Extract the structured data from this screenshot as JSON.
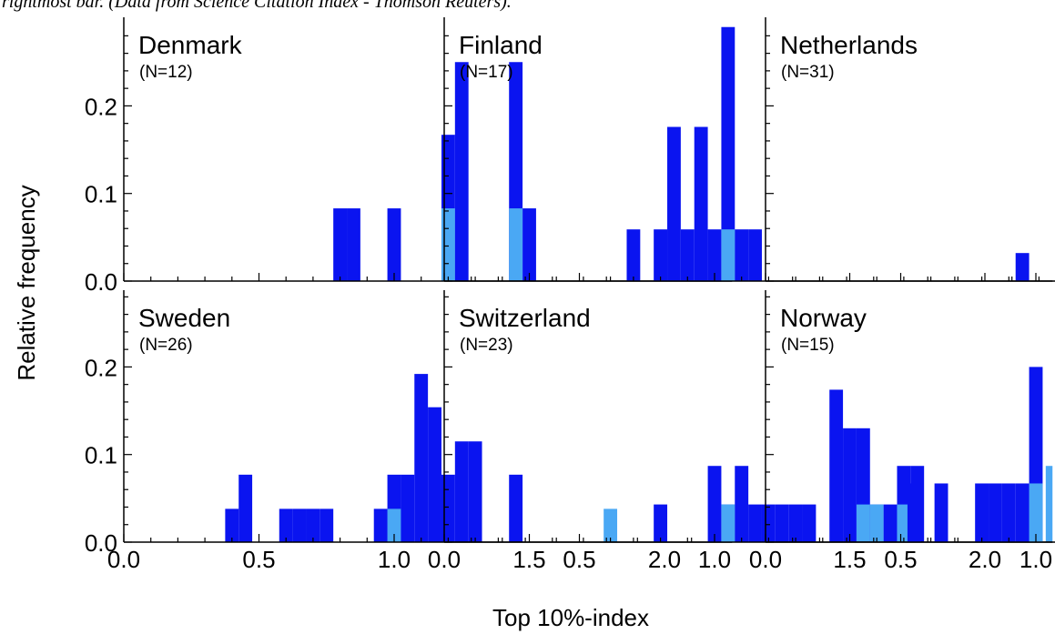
{
  "caption": "rightmost bar. (Data from Science Citation Index - Thomson Reuters).",
  "chart_data": {
    "type": "bar",
    "xlabel": "Top 10%-index",
    "ylabel": "Relative frequency",
    "xlim": [
      0.0,
      2.25
    ],
    "ylim": [
      0.0,
      0.29
    ],
    "xticks": [
      "0.0",
      "0.5",
      "1.0",
      "1.5",
      "2.0"
    ],
    "yticks": [
      "0.0",
      "0.1",
      "0.2"
    ],
    "bar_width": 0.05,
    "colors": {
      "total": "#0a14f0",
      "highlight": "#4aa8f4"
    },
    "panels": [
      {
        "country": "Denmark",
        "count_label": "(N=12)",
        "bars": [
          [
            0.8,
            0.083
          ],
          [
            0.85,
            0.083
          ],
          [
            1.0,
            0.083
          ],
          [
            1.2,
            0.167
          ],
          [
            1.25,
            0.25
          ],
          [
            1.45,
            0.25
          ],
          [
            1.5,
            0.083
          ]
        ],
        "highlight": [
          [
            1.2,
            0.083
          ],
          [
            1.45,
            0.083
          ]
        ]
      },
      {
        "country": "Finland",
        "count_label": "(N=17)",
        "bars": [
          [
            0.7,
            0.059
          ],
          [
            0.8,
            0.059
          ],
          [
            0.85,
            0.176
          ],
          [
            0.9,
            0.059
          ],
          [
            0.95,
            0.176
          ],
          [
            1.0,
            0.059
          ],
          [
            1.05,
            0.29
          ],
          [
            1.1,
            0.059
          ],
          [
            1.15,
            0.059
          ]
        ],
        "highlight": [
          [
            1.05,
            0.059
          ]
        ]
      },
      {
        "country": "Netherlands",
        "count_label": "(N=31)",
        "bars": [
          [
            0.95,
            0.032
          ],
          [
            1.1,
            0.097
          ],
          [
            1.15,
            0.032
          ],
          [
            1.2,
            0.032
          ],
          [
            1.25,
            0.194
          ],
          [
            1.3,
            0.032
          ],
          [
            1.35,
            0.097
          ],
          [
            1.4,
            0.032
          ],
          [
            1.45,
            0.194
          ],
          [
            1.5,
            0.097
          ],
          [
            1.55,
            0.065
          ],
          [
            1.6,
            0.065
          ],
          [
            2.25,
            0.065
          ]
        ],
        "highlight": [
          [
            1.6,
            0.032
          ],
          [
            1.7,
            0.032
          ],
          [
            2.25,
            0.032
          ]
        ]
      },
      {
        "country": "Sweden",
        "count_label": "(N=26)",
        "bars": [
          [
            0.4,
            0.038
          ],
          [
            0.45,
            0.077
          ],
          [
            0.6,
            0.038
          ],
          [
            0.65,
            0.038
          ],
          [
            0.7,
            0.038
          ],
          [
            0.75,
            0.038
          ],
          [
            0.95,
            0.038
          ],
          [
            1.0,
            0.077
          ],
          [
            1.05,
            0.077
          ],
          [
            1.1,
            0.192
          ],
          [
            1.15,
            0.154
          ],
          [
            1.2,
            0.077
          ],
          [
            1.25,
            0.115
          ],
          [
            1.3,
            0.115
          ],
          [
            1.45,
            0.077
          ]
        ],
        "highlight": [
          [
            1.0,
            0.038
          ],
          [
            1.8,
            0.038
          ]
        ]
      },
      {
        "country": "Switzerland",
        "count_label": "(N=23)",
        "bars": [
          [
            0.8,
            0.043
          ],
          [
            1.0,
            0.087
          ],
          [
            1.05,
            0.043
          ],
          [
            1.1,
            0.087
          ],
          [
            1.15,
            0.043
          ],
          [
            1.2,
            0.043
          ],
          [
            1.25,
            0.043
          ],
          [
            1.3,
            0.043
          ],
          [
            1.35,
            0.043
          ],
          [
            1.45,
            0.174
          ],
          [
            1.5,
            0.13
          ],
          [
            1.55,
            0.13
          ],
          [
            1.6,
            0.043
          ],
          [
            1.65,
            0.043
          ],
          [
            1.7,
            0.087
          ],
          [
            1.75,
            0.087
          ]
        ],
        "highlight": [
          [
            1.05,
            0.043
          ],
          [
            1.55,
            0.043
          ],
          [
            1.6,
            0.043
          ],
          [
            1.7,
            0.043
          ],
          [
            2.25,
            0.087
          ]
        ]
      },
      {
        "country": "Norway",
        "count_label": "(N=15)",
        "bars": [
          [
            0.55,
            0.067
          ],
          [
            0.65,
            0.067
          ],
          [
            0.8,
            0.067
          ],
          [
            0.85,
            0.067
          ],
          [
            0.9,
            0.067
          ],
          [
            0.95,
            0.067
          ],
          [
            1.0,
            0.2
          ],
          [
            1.1,
            0.2
          ],
          [
            1.2,
            0.067
          ],
          [
            1.3,
            0.067
          ],
          [
            1.45,
            0.067
          ],
          [
            1.7,
            0.067
          ]
        ],
        "highlight": [
          [
            1.0,
            0.067
          ],
          [
            1.45,
            0.067
          ]
        ]
      }
    ]
  }
}
